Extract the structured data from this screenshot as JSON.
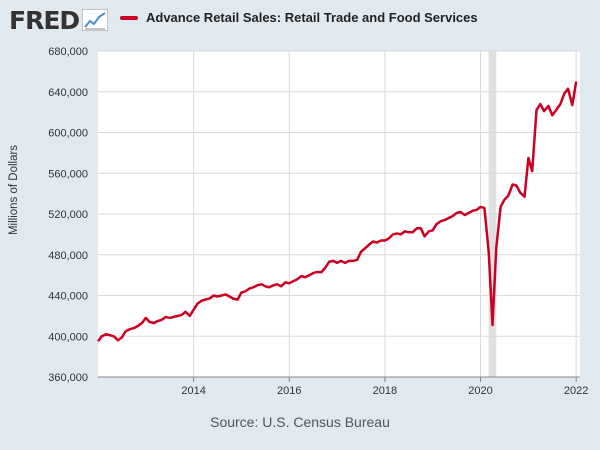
{
  "header": {
    "logo_text": "FRED",
    "logo_icon": "fred-chart-logo-icon",
    "legend_label": "Advance Retail Sales: Retail Trade and Food Services"
  },
  "colors": {
    "series": "#cc0022",
    "recession": "#e0e0e0",
    "grid": "#d9d9d9",
    "background": "#e1e9f0",
    "plot": "#ffffff"
  },
  "footer": {
    "source": "Source: U.S. Census Bureau"
  },
  "chart_data": {
    "type": "line",
    "title": "",
    "xlabel": "",
    "ylabel": "Millions of Dollars",
    "xlim": [
      2012.0,
      2022.08
    ],
    "ylim": [
      360000,
      680000
    ],
    "y_ticks": [
      360000,
      400000,
      440000,
      480000,
      520000,
      560000,
      600000,
      640000,
      680000
    ],
    "y_tick_labels": [
      "360,000",
      "400,000",
      "440,000",
      "480,000",
      "520,000",
      "560,000",
      "600,000",
      "640,000",
      "680,000"
    ],
    "x_ticks": [
      2014,
      2016,
      2018,
      2020,
      2022
    ],
    "x_tick_labels": [
      "2014",
      "2016",
      "2018",
      "2020",
      "2022"
    ],
    "grid": true,
    "legend_position": "top",
    "recession_shading": [
      [
        2020.17,
        2020.33
      ]
    ],
    "series": [
      {
        "name": "Advance Retail Sales: Retail Trade and Food Services",
        "x": [
          2012.0,
          2012.08,
          2012.17,
          2012.25,
          2012.33,
          2012.42,
          2012.5,
          2012.58,
          2012.67,
          2012.75,
          2012.83,
          2012.92,
          2013.0,
          2013.08,
          2013.17,
          2013.25,
          2013.33,
          2013.42,
          2013.5,
          2013.58,
          2013.67,
          2013.75,
          2013.83,
          2013.92,
          2014.0,
          2014.08,
          2014.17,
          2014.25,
          2014.33,
          2014.42,
          2014.5,
          2014.58,
          2014.67,
          2014.75,
          2014.83,
          2014.92,
          2015.0,
          2015.08,
          2015.17,
          2015.25,
          2015.33,
          2015.42,
          2015.5,
          2015.58,
          2015.67,
          2015.75,
          2015.83,
          2015.92,
          2016.0,
          2016.08,
          2016.17,
          2016.25,
          2016.33,
          2016.42,
          2016.5,
          2016.58,
          2016.67,
          2016.75,
          2016.83,
          2016.92,
          2017.0,
          2017.08,
          2017.17,
          2017.25,
          2017.33,
          2017.42,
          2017.5,
          2017.58,
          2017.67,
          2017.75,
          2017.83,
          2017.92,
          2018.0,
          2018.08,
          2018.17,
          2018.25,
          2018.33,
          2018.42,
          2018.5,
          2018.58,
          2018.67,
          2018.75,
          2018.83,
          2018.92,
          2019.0,
          2019.08,
          2019.17,
          2019.25,
          2019.33,
          2019.42,
          2019.5,
          2019.58,
          2019.67,
          2019.75,
          2019.83,
          2019.92,
          2020.0,
          2020.08,
          2020.17,
          2020.25,
          2020.33,
          2020.42,
          2020.5,
          2020.58,
          2020.67,
          2020.75,
          2020.83,
          2020.92,
          2021.0,
          2021.08,
          2021.17,
          2021.25,
          2021.33,
          2021.42,
          2021.5,
          2021.58,
          2021.67,
          2021.75,
          2021.83,
          2021.92,
          2022.0
        ],
        "values": [
          395000,
          400000,
          402000,
          401000,
          400000,
          396000,
          399000,
          405000,
          407000,
          408000,
          410000,
          413000,
          418000,
          414000,
          413000,
          415000,
          416000,
          419000,
          418000,
          419000,
          420000,
          421000,
          424000,
          420000,
          426000,
          432000,
          435000,
          436000,
          437000,
          440000,
          439000,
          440000,
          441000,
          439000,
          437000,
          436000,
          443000,
          444000,
          447000,
          448000,
          450000,
          451000,
          449000,
          448000,
          450000,
          451000,
          449000,
          453000,
          452000,
          454000,
          456000,
          459000,
          458000,
          460000,
          462000,
          463000,
          463000,
          467000,
          473000,
          474000,
          472000,
          474000,
          472000,
          474000,
          474000,
          475000,
          483000,
          486000,
          490000,
          493000,
          492000,
          494000,
          494000,
          496000,
          500000,
          501000,
          500000,
          503000,
          502000,
          502000,
          506000,
          506000,
          498000,
          503000,
          504000,
          510000,
          513000,
          514000,
          516000,
          518000,
          521000,
          522000,
          519000,
          521000,
          523000,
          524000,
          527000,
          526000,
          483000,
          411000,
          487000,
          527000,
          534000,
          538000,
          549000,
          548000,
          541000,
          537000,
          575000,
          562000,
          622000,
          628000,
          621000,
          626000,
          617000,
          622000,
          628000,
          638000,
          643000,
          627000,
          650000
        ]
      }
    ]
  }
}
